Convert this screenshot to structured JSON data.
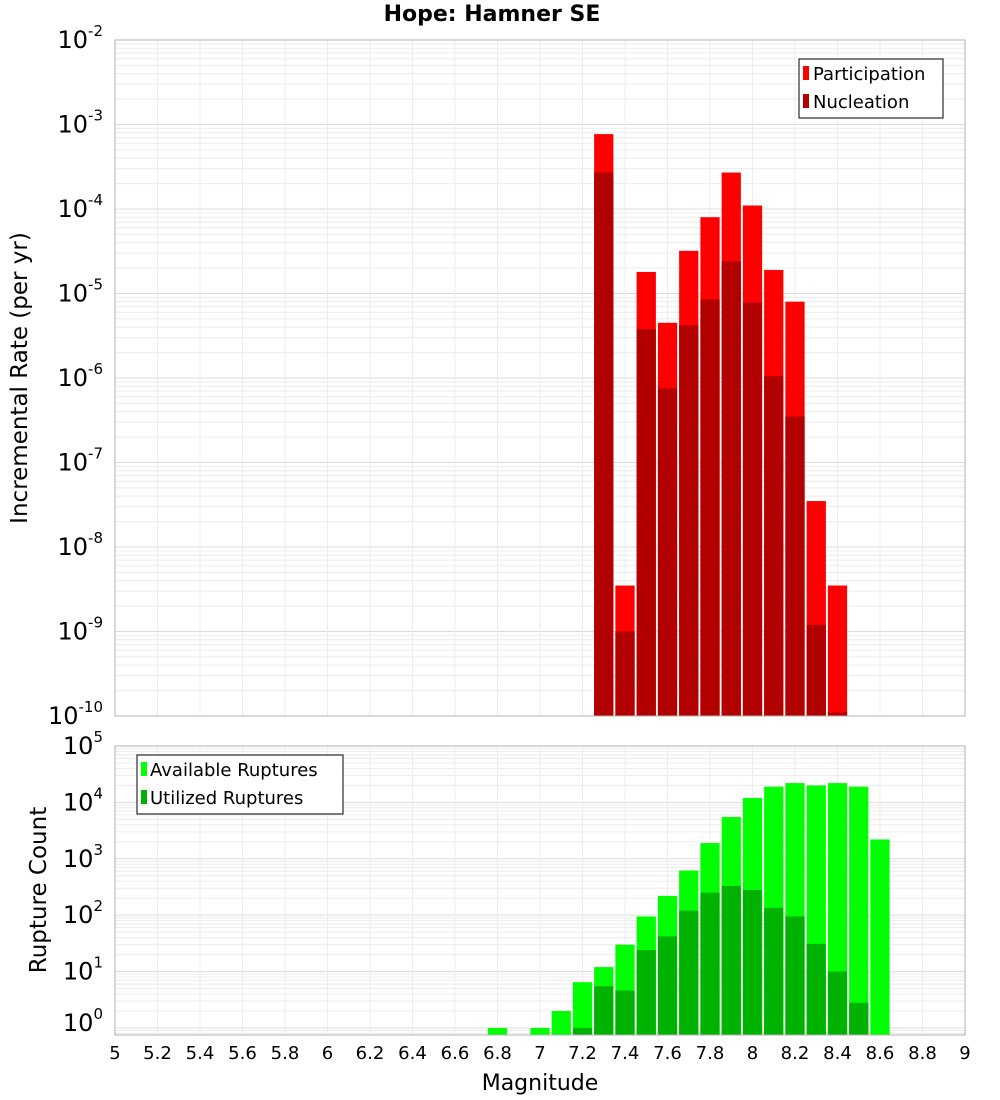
{
  "chart_data": [
    {
      "type": "bar",
      "title": "Hope: Hamner SE",
      "ylabel": "Incremental Rate (per yr)",
      "xlabel": "",
      "yscale": "log",
      "ylim": [
        1e-10,
        0.01
      ],
      "ytick_exponents": [
        "-2",
        "-3",
        "-4",
        "-5",
        "-6",
        "-7",
        "-8",
        "-9",
        "-10"
      ],
      "legend_position": "top-right",
      "grid": true,
      "series": [
        {
          "name": "Participation",
          "color": "#ff0000",
          "x": [
            7.3,
            7.4,
            7.5,
            7.6,
            7.7,
            7.8,
            7.9,
            8.0,
            8.1,
            8.2,
            8.3,
            8.4,
            8.5
          ],
          "values": [
            0.00077,
            3.5e-09,
            1.8e-05,
            4.5e-06,
            3.2e-05,
            8e-05,
            0.00027,
            0.00011,
            1.9e-05,
            8e-06,
            3.5e-08,
            3.5e-09,
            null
          ]
        },
        {
          "name": "Nucleation",
          "color": "#b20000",
          "x": [
            7.3,
            7.4,
            7.5,
            7.6,
            7.7,
            7.8,
            7.9,
            8.0,
            8.1,
            8.2,
            8.3,
            8.4,
            8.5
          ],
          "values": [
            0.00027,
            1e-09,
            3.8e-06,
            7.5e-07,
            4.2e-06,
            8.5e-06,
            2.4e-05,
            7.8e-06,
            1.05e-06,
            3.5e-07,
            1.2e-09,
            1.1e-10,
            null
          ]
        }
      ]
    },
    {
      "type": "bar",
      "ylabel": "Rupture Count",
      "xlabel": "Magnitude",
      "yscale": "log",
      "ylim": [
        0.75,
        100000.0
      ],
      "ytick_exponents": [
        "5",
        "4",
        "3",
        "2",
        "1",
        "0"
      ],
      "xlim": [
        5,
        9
      ],
      "xticks": [
        "5",
        "5.2",
        "5.4",
        "5.6",
        "5.8",
        "6",
        "6.2",
        "6.4",
        "6.6",
        "6.8",
        "7",
        "7.2",
        "7.4",
        "7.6",
        "7.8",
        "8",
        "8.2",
        "8.4",
        "8.6",
        "8.8",
        "9"
      ],
      "legend_position": "top-left",
      "grid": true,
      "series": [
        {
          "name": "Available Ruptures",
          "color": "#00ff00",
          "x": [
            6.8,
            6.9,
            7.0,
            7.1,
            7.2,
            7.3,
            7.4,
            7.5,
            7.6,
            7.7,
            7.8,
            7.9,
            8.0,
            8.1,
            8.2,
            8.3,
            8.4,
            8.5,
            8.6
          ],
          "values": [
            1,
            null,
            1,
            2,
            6.5,
            12,
            30,
            95,
            220,
            620,
            1900,
            5500,
            12000,
            19000,
            22000,
            20000,
            22000,
            19000,
            2200
          ]
        },
        {
          "name": "Utilized Ruptures",
          "color": "#00b200",
          "x": [
            7.2,
            7.3,
            7.4,
            7.5,
            7.6,
            7.7,
            7.8,
            7.9,
            8.0,
            8.1,
            8.2,
            8.3,
            8.4,
            8.5
          ],
          "values": [
            1,
            5.5,
            4.6,
            24,
            42,
            120,
            250,
            330,
            280,
            135,
            95,
            31,
            10,
            2.8
          ]
        }
      ]
    }
  ]
}
